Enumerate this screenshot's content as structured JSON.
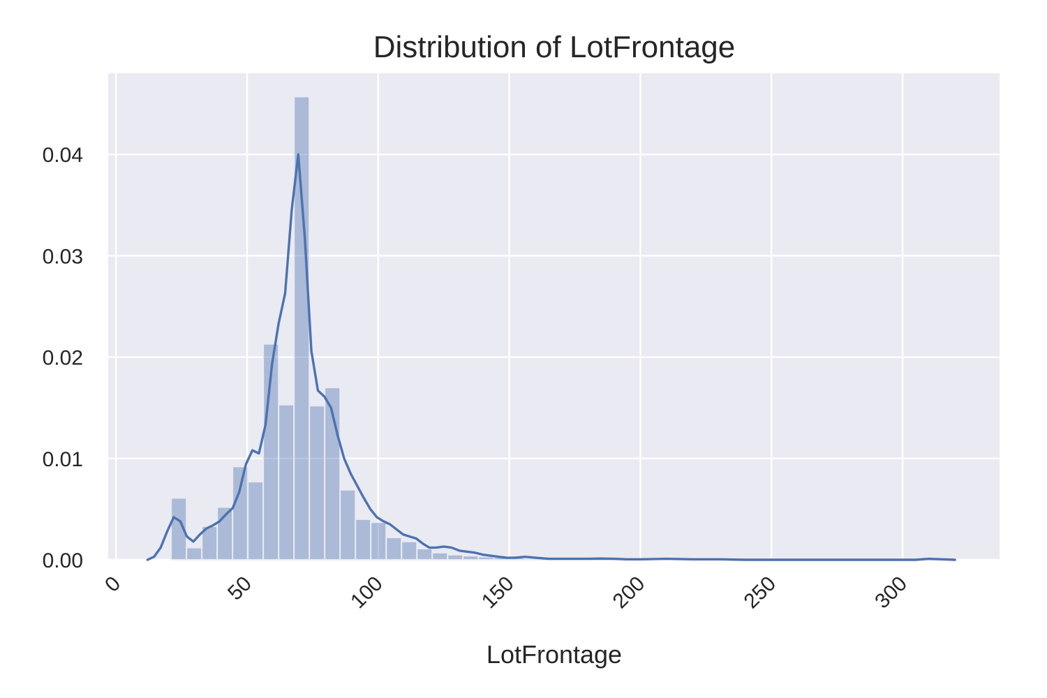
{
  "chart_data": {
    "type": "bar",
    "title": "Distribution of LotFrontage",
    "xlabel": "LotFrontage",
    "ylabel": "",
    "xlim": [
      -3,
      337
    ],
    "ylim": [
      0,
      0.048
    ],
    "grid": true,
    "xticks": [
      0,
      50,
      100,
      150,
      200,
      250,
      300
    ],
    "xtick_labels": [
      "0",
      "50",
      "100",
      "150",
      "200",
      "250",
      "300"
    ],
    "xtick_rotation": 45,
    "yticks": [
      0,
      0.01,
      0.02,
      0.03,
      0.04
    ],
    "ytick_labels": [
      "0.00",
      "0.01",
      "0.02",
      "0.03",
      "0.04"
    ],
    "histogram": {
      "bin_edges": [
        21,
        26.86,
        32.72,
        38.58,
        44.44,
        50.3,
        56.16,
        62.02,
        67.88,
        73.74,
        79.6,
        85.46,
        91.32,
        97.18,
        103.04,
        108.9,
        114.76,
        120.62,
        126.48,
        132.34,
        138.2,
        144.06,
        149.92,
        155.78,
        161.64,
        167.5,
        173.36,
        179.22,
        185.08,
        190.94,
        196.8,
        202.66,
        208.52,
        214.38,
        220.24,
        226.1,
        231.96,
        237.82,
        243.68,
        249.54,
        255.4,
        261.26,
        267.12,
        272.98,
        278.84,
        284.7,
        290.56,
        296.42,
        302.28,
        308.14,
        314
      ],
      "values": [
        0.0061,
        0.0012,
        0.0033,
        0.0052,
        0.0092,
        0.0077,
        0.0213,
        0.0153,
        0.0457,
        0.0152,
        0.017,
        0.0069,
        0.004,
        0.0037,
        0.0022,
        0.0018,
        0.0011,
        0.0007,
        0.0005,
        0.0004,
        0.0003,
        0.00025,
        0.0002,
        0.0001,
        0.0001,
        5e-05,
        5e-05,
        5e-05,
        2e-05,
        2e-05,
        2e-05,
        0.0,
        0.0,
        0.0,
        0.0,
        0.0,
        0.0,
        0.0,
        0.0,
        0.0,
        0.0,
        0.0,
        0.0,
        0.0,
        0.0,
        0.0,
        0.0,
        0.0,
        0.0,
        5e-05
      ],
      "color": "#4c72b0",
      "opacity": 0.4
    },
    "kde": {
      "color": "#4c72b0",
      "x": [
        12,
        14.5,
        17,
        19.5,
        22,
        24.5,
        27,
        29.5,
        32,
        34.5,
        37,
        39.5,
        42,
        44.5,
        47,
        49.5,
        52,
        54.5,
        57,
        59.5,
        62,
        64.5,
        67,
        69.5,
        72,
        74.5,
        77,
        79.5,
        82,
        84.5,
        87,
        89.5,
        92,
        94.5,
        97,
        99.5,
        102,
        104.5,
        107,
        109.5,
        112,
        114.5,
        117,
        119.5,
        122,
        125,
        128,
        131,
        134,
        137,
        140,
        143,
        146,
        149,
        152,
        156,
        160,
        165,
        170,
        175,
        180,
        185,
        190,
        195,
        200,
        210,
        220,
        230,
        240,
        250,
        260,
        270,
        280,
        290,
        300,
        305,
        310,
        315,
        320
      ],
      "y": [
        0.0,
        0.0003,
        0.0012,
        0.0028,
        0.0042,
        0.0038,
        0.0023,
        0.0018,
        0.0025,
        0.0031,
        0.0034,
        0.0038,
        0.0045,
        0.0051,
        0.0067,
        0.0094,
        0.0108,
        0.0105,
        0.0133,
        0.0193,
        0.0233,
        0.0263,
        0.0345,
        0.04,
        0.0318,
        0.0206,
        0.0167,
        0.0161,
        0.015,
        0.0123,
        0.01,
        0.0085,
        0.0073,
        0.0061,
        0.005,
        0.0042,
        0.0038,
        0.0035,
        0.003,
        0.0025,
        0.0023,
        0.0021,
        0.0016,
        0.0012,
        0.0012,
        0.0013,
        0.0012,
        0.0009,
        0.0008,
        0.0007,
        0.0005,
        0.0004,
        0.0003,
        0.0002,
        0.0002,
        0.0003,
        0.0002,
        0.0001,
        0.0001,
        0.0001,
        0.0001,
        0.00012,
        0.0001,
        5e-05,
        5e-05,
        0.0001,
        5e-05,
        5e-05,
        0.0,
        0.0,
        0.0,
        0.0,
        0.0,
        0.0,
        0.0,
        0.0,
        0.0001,
        5e-05,
        0.0
      ]
    }
  }
}
